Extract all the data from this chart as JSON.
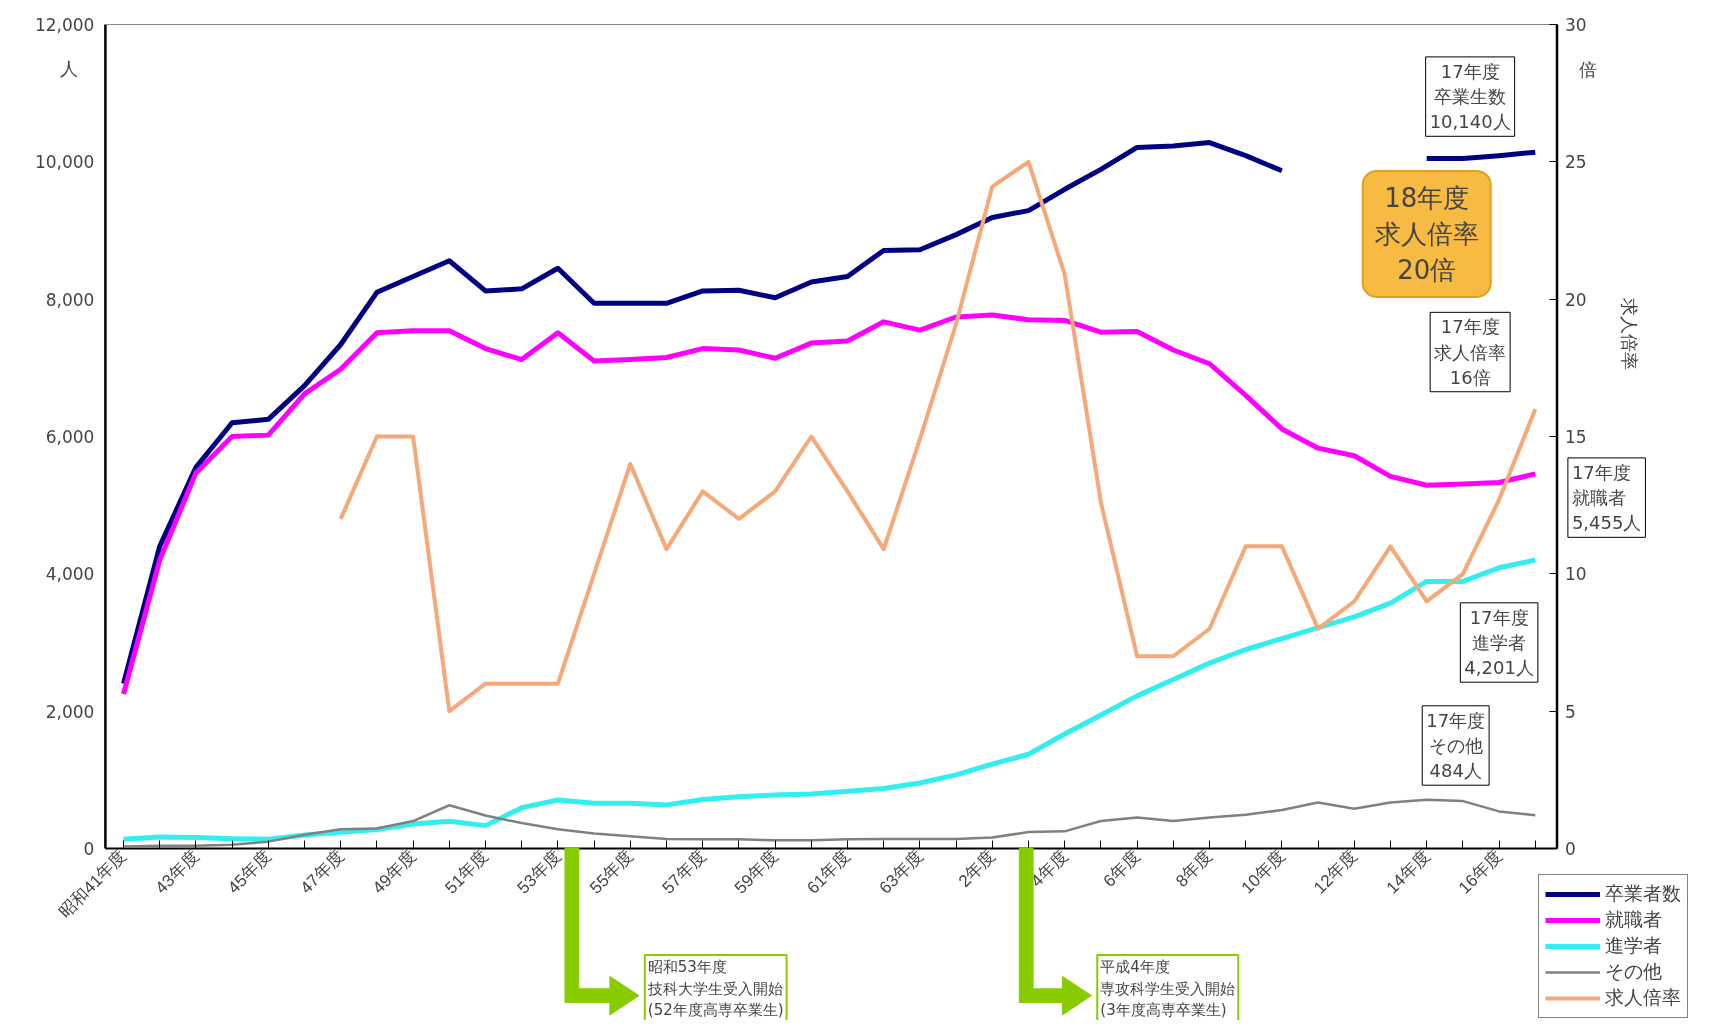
{
  "chart_data": {
    "type": "line",
    "categories": [
      "昭和41年度",
      null,
      "43年度",
      null,
      "45年度",
      null,
      "47年度",
      null,
      "49年度",
      null,
      "51年度",
      null,
      "53年度",
      null,
      "55年度",
      null,
      "57年度",
      null,
      "59年度",
      null,
      "61年度",
      null,
      "63年度",
      null,
      "2年度",
      null,
      "4年度",
      null,
      "6年度",
      null,
      "8年度",
      null,
      "10年度",
      null,
      "12年度",
      null,
      "14年度",
      null,
      "16年度",
      null
    ],
    "series": [
      {
        "name": "卒業者数",
        "color": "#000080",
        "values": [
          2400,
          4400,
          5550,
          6200,
          6250,
          6740,
          7340,
          8100,
          8330,
          8560,
          8120,
          8150,
          8450,
          7940,
          7940,
          7940,
          8120,
          8130,
          8020,
          8250,
          8330,
          8710,
          8720,
          8940,
          9190,
          9290,
          9600,
          9890,
          10210,
          10230,
          10280,
          10090,
          9870,
          null,
          null,
          null,
          10050,
          10050,
          10090,
          10140
        ]
      },
      {
        "name": "就職者",
        "color": "#ff00ff",
        "values": [
          2250,
          4200,
          5470,
          6000,
          6020,
          6620,
          6980,
          7510,
          7540,
          7540,
          7280,
          7120,
          7510,
          7100,
          7120,
          7150,
          7280,
          7260,
          7140,
          7360,
          7390,
          7670,
          7550,
          7740,
          7770,
          7700,
          7690,
          7520,
          7530,
          7260,
          7060,
          6600,
          6110,
          5830,
          5720,
          5420,
          5290,
          5310,
          5330,
          5455
        ]
      },
      {
        "name": "進学者",
        "color": "#33eeee",
        "values": [
          135,
          167,
          159,
          143,
          135,
          198,
          238,
          278,
          357,
          397,
          333,
          595,
          706,
          659,
          659,
          635,
          714,
          754,
          778,
          794,
          833,
          873,
          953,
          1072,
          1230,
          1373,
          1667,
          1945,
          2223,
          2461,
          2700,
          2898,
          3057,
          3216,
          3374,
          3573,
          3890,
          3890,
          4089,
          4201
        ]
      },
      {
        "name": "その他",
        "color": "#808080",
        "values": [
          30,
          40,
          40,
          55,
          100,
          200,
          280,
          290,
          400,
          630,
          480,
          370,
          280,
          220,
          180,
          140,
          135,
          135,
          120,
          120,
          135,
          140,
          140,
          140,
          160,
          240,
          250,
          400,
          450,
          400,
          450,
          490,
          560,
          670,
          580,
          670,
          710,
          690,
          540,
          484
        ]
      },
      {
        "name": "求人倍率",
        "color": "#f5a878",
        "axis": "y2",
        "values": [
          null,
          null,
          null,
          null,
          null,
          null,
          12,
          15,
          15,
          5,
          6,
          6,
          6,
          10,
          14,
          10.9,
          13,
          12,
          13,
          15,
          13,
          10.9,
          14.9,
          19.1,
          24.1,
          25,
          20.9,
          12.6,
          7,
          7,
          8,
          11,
          11,
          8,
          9,
          11,
          9,
          10,
          12.7,
          16
        ]
      }
    ],
    "ylabel": "人",
    "y2label": "求人倍率",
    "ylim": [
      0,
      12000
    ],
    "yticks": [
      {
        "value": 0,
        "label": "0"
      },
      {
        "value": 2000,
        "label": "2,000"
      },
      {
        "value": 4000,
        "label": "4,000"
      },
      {
        "value": 6000,
        "label": "6,000"
      },
      {
        "value": 8000,
        "label": "8,000"
      },
      {
        "value": 10000,
        "label": "10,000"
      },
      {
        "value": 12000,
        "label": "12,000"
      }
    ],
    "y2lim": [
      0,
      30
    ],
    "y2ticks": [
      0,
      5,
      10,
      15,
      20,
      25,
      30
    ],
    "annotations": [
      "17年度卒業生数10,140人",
      "17年度求人倍率16倍",
      "17年度就職者5,455人",
      "17年度進学者4,201人",
      "17年度その他484人",
      "18年度求人倍率20倍",
      "昭和53年度技科大学生受入開始(52年度高専卒業生)",
      "平成4年度専攻科学生受入開始(3年度高専卒業生)",
      "倍"
    ],
    "legend": "bottom right",
    "grid": false,
    "marker": "none",
    "line_style": "solid"
  }
}
